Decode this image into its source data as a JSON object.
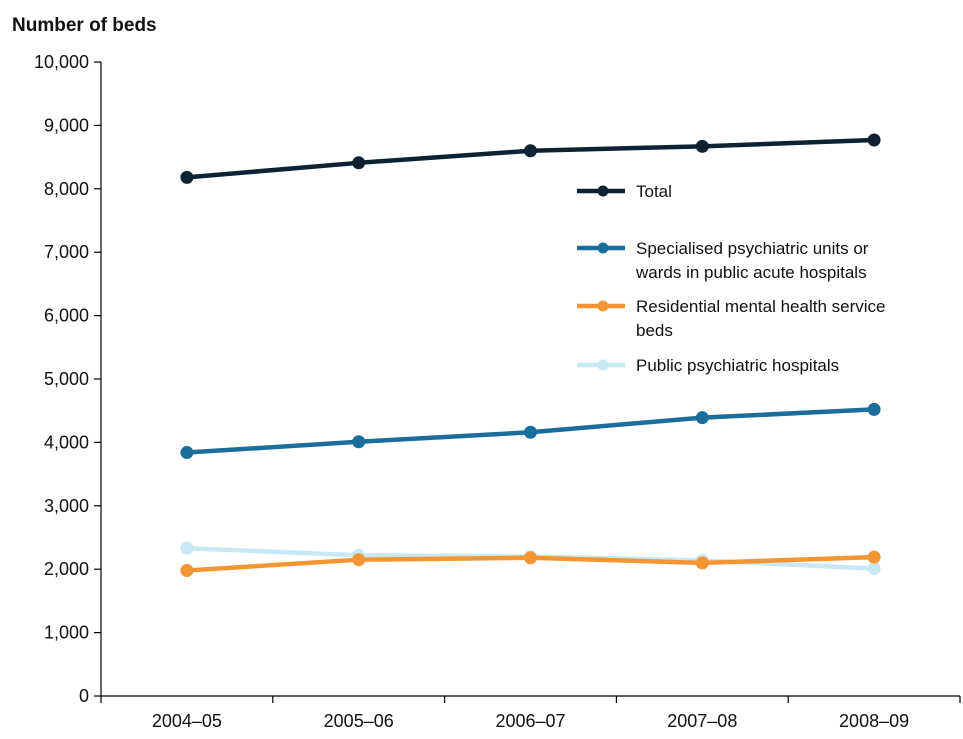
{
  "chart_data": {
    "type": "line",
    "title": "",
    "ylabel": "Number of beds",
    "xlabel": "",
    "categories": [
      "2004–05",
      "2005–06",
      "2006–07",
      "2007–08",
      "2008–09"
    ],
    "ylim": [
      0,
      10000
    ],
    "yticks": [
      0,
      1000,
      2000,
      3000,
      4000,
      5000,
      6000,
      7000,
      8000,
      9000,
      10000
    ],
    "ytick_labels": [
      "0",
      "1,000",
      "2,000",
      "3,000",
      "4,000",
      "5,000",
      "6,000",
      "7,000",
      "8,000",
      "9,000",
      "10,000"
    ],
    "grid": false,
    "legend_position": "right",
    "series": [
      {
        "name": "Total",
        "name_lines": [
          "Total"
        ],
        "color": "#0f2233",
        "values": [
          8180,
          8410,
          8600,
          8670,
          8770
        ]
      },
      {
        "name": "Specialised psychiatric units or wards in public acute hospitals",
        "name_lines": [
          "Specialised psychiatric units or",
          "wards in public acute hospitals"
        ],
        "color": "#1b6e9c",
        "values": [
          3840,
          4010,
          4160,
          4390,
          4520
        ]
      },
      {
        "name": "Residential mental health service beds",
        "name_lines": [
          "Residential mental health service",
          "beds"
        ],
        "color": "#f39532",
        "values": [
          1980,
          2150,
          2180,
          2100,
          2190
        ]
      },
      {
        "name": "Public psychiatric hospitals",
        "name_lines": [
          "Public psychiatric hospitals"
        ],
        "color": "#c9e8f6",
        "values": [
          2330,
          2220,
          2200,
          2140,
          2010
        ]
      }
    ]
  }
}
